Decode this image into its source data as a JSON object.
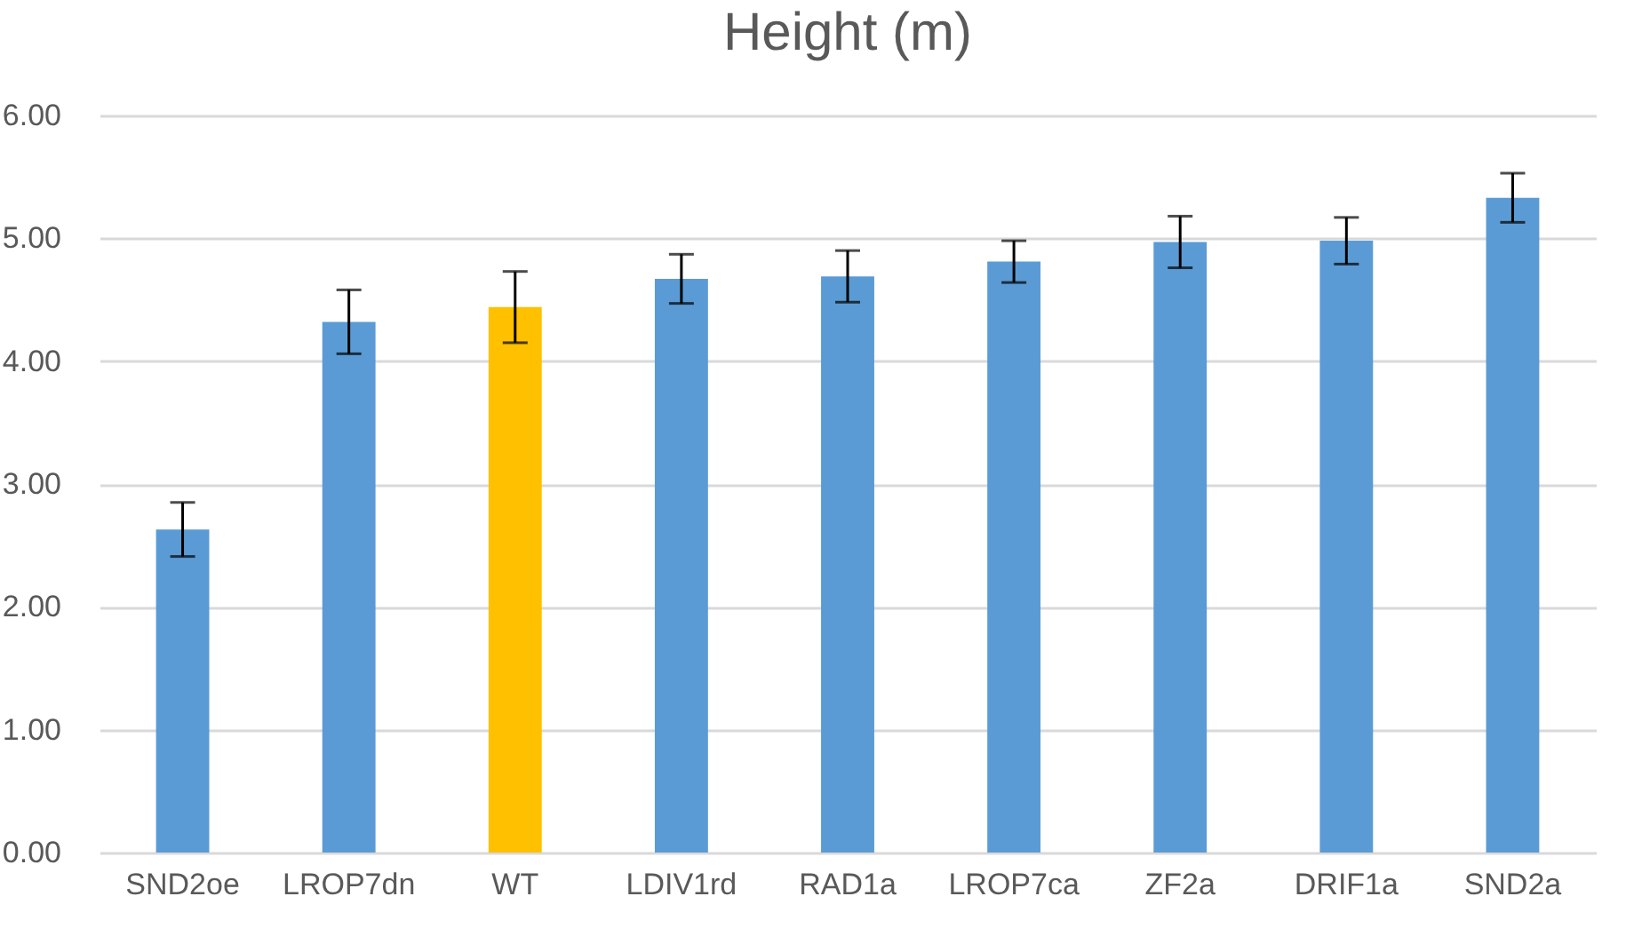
{
  "chart_data": {
    "type": "bar",
    "title": "Height (m)",
    "categories": [
      "SND2oe",
      "LROP7dn",
      "WT",
      "LDIV1rd",
      "RAD1a",
      "LROP7ca",
      "ZF2a",
      "DRIF1a",
      "SND2a"
    ],
    "values": [
      2.63,
      4.32,
      4.44,
      4.67,
      4.69,
      4.81,
      4.97,
      4.98,
      5.33
    ],
    "errors": [
      0.22,
      0.26,
      0.29,
      0.2,
      0.21,
      0.17,
      0.21,
      0.19,
      0.2
    ],
    "colors": [
      "#5b9bd5",
      "#5b9bd5",
      "#ffc000",
      "#5b9bd5",
      "#5b9bd5",
      "#5b9bd5",
      "#5b9bd5",
      "#5b9bd5",
      "#5b9bd5"
    ],
    "ylim": [
      0,
      6
    ],
    "yticks": [
      {
        "value": 0,
        "label": "0.00"
      },
      {
        "value": 1,
        "label": "1.00"
      },
      {
        "value": 2,
        "label": "2.00"
      },
      {
        "value": 3,
        "label": "3.00"
      },
      {
        "value": 4,
        "label": "4.00"
      },
      {
        "value": 5,
        "label": "5.00"
      },
      {
        "value": 6,
        "label": "6.00"
      }
    ],
    "grid": "y"
  }
}
